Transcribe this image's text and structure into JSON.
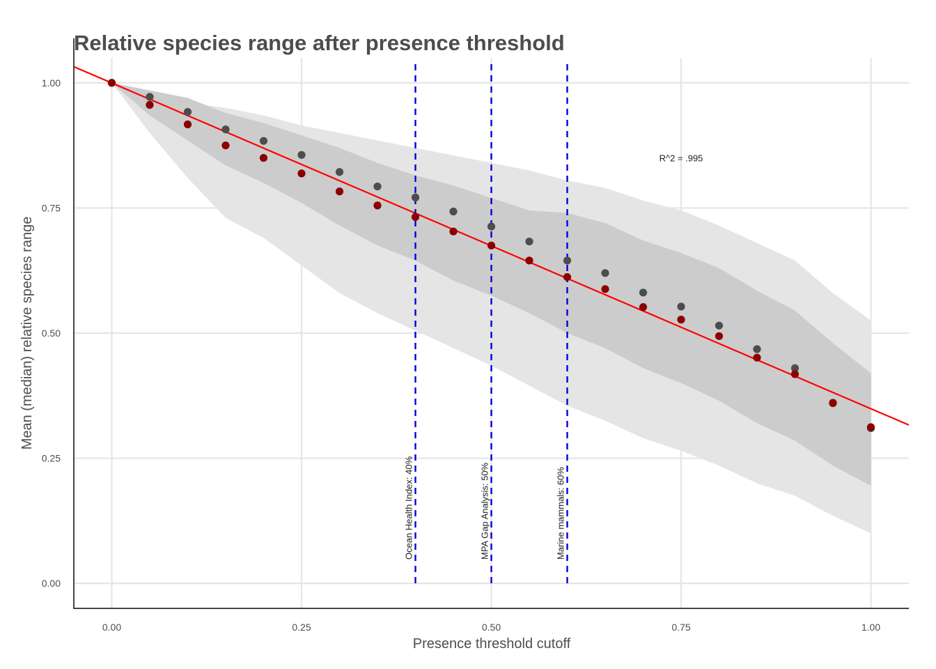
{
  "chart_data": {
    "type": "scatter",
    "title": "Relative species range after presence threshold",
    "xlabel": "Presence threshold cutoff",
    "ylabel": "Mean (median) relative species range",
    "xlim": [
      -0.05,
      1.05
    ],
    "ylim": [
      -0.05,
      1.05
    ],
    "x_ticks": [
      0.0,
      0.25,
      0.5,
      0.75,
      1.0
    ],
    "x_tick_labels": [
      "0.00",
      "0.25",
      "0.50",
      "0.75",
      "1.00"
    ],
    "y_ticks": [
      0.0,
      0.25,
      0.5,
      0.75,
      1.0
    ],
    "y_tick_labels": [
      "0.00",
      "0.25",
      "0.50",
      "0.75",
      "1.00"
    ],
    "grid": true,
    "x": [
      0.0,
      0.05,
      0.1,
      0.15,
      0.2,
      0.25,
      0.3,
      0.35,
      0.4,
      0.45,
      0.5,
      0.55,
      0.6,
      0.65,
      0.7,
      0.75,
      0.8,
      0.85,
      0.9,
      0.95,
      1.0
    ],
    "series": [
      {
        "name": "mean",
        "color": "#4d4d4d",
        "values": [
          1.0,
          0.972,
          0.942,
          0.907,
          0.884,
          0.856,
          0.822,
          0.793,
          0.771,
          0.743,
          0.713,
          0.683,
          0.645,
          0.62,
          0.581,
          0.553,
          0.515,
          0.468,
          0.43,
          0.361,
          0.31
        ]
      },
      {
        "name": "median",
        "color": "#8b0000",
        "values": [
          1.0,
          0.956,
          0.917,
          0.875,
          0.85,
          0.819,
          0.783,
          0.755,
          0.732,
          0.703,
          0.675,
          0.645,
          0.612,
          0.588,
          0.552,
          0.527,
          0.494,
          0.451,
          0.418,
          0.36,
          0.312
        ]
      }
    ],
    "bands": [
      {
        "name": "outer",
        "color": "#e5e5e5",
        "lower": [
          1.0,
          0.9,
          0.81,
          0.73,
          0.69,
          0.635,
          0.58,
          0.54,
          0.505,
          0.47,
          0.435,
          0.395,
          0.355,
          0.325,
          0.29,
          0.265,
          0.235,
          0.2,
          0.175,
          0.135,
          0.1
        ],
        "upper": [
          1.0,
          0.975,
          0.96,
          0.95,
          0.935,
          0.915,
          0.9,
          0.885,
          0.87,
          0.855,
          0.84,
          0.825,
          0.805,
          0.79,
          0.765,
          0.745,
          0.715,
          0.68,
          0.645,
          0.58,
          0.525
        ]
      },
      {
        "name": "inner",
        "color": "#cccccc",
        "lower": [
          1.0,
          0.935,
          0.885,
          0.835,
          0.8,
          0.76,
          0.715,
          0.675,
          0.645,
          0.605,
          0.575,
          0.54,
          0.5,
          0.47,
          0.43,
          0.4,
          0.365,
          0.32,
          0.285,
          0.235,
          0.195
        ],
        "upper": [
          1.0,
          0.985,
          0.97,
          0.94,
          0.92,
          0.895,
          0.87,
          0.84,
          0.815,
          0.795,
          0.77,
          0.745,
          0.74,
          0.72,
          0.685,
          0.66,
          0.63,
          0.585,
          0.545,
          0.48,
          0.42
        ]
      }
    ],
    "fit_line": {
      "color": "#ff0000",
      "x": [
        -0.05,
        1.05
      ],
      "y": [
        1.0323,
        0.3164
      ]
    },
    "vlines": [
      {
        "x": 0.4,
        "label": "Ocean Health Index: 40%",
        "color": "#0000dd"
      },
      {
        "x": 0.5,
        "label": "MPA Gap Analysis: 50%",
        "color": "#0000dd"
      },
      {
        "x": 0.6,
        "label": "Marine mammals: 60%",
        "color": "#0000dd"
      }
    ],
    "annotations": [
      {
        "x": 0.75,
        "y": 0.85,
        "text": "R^2 = .995"
      }
    ]
  }
}
